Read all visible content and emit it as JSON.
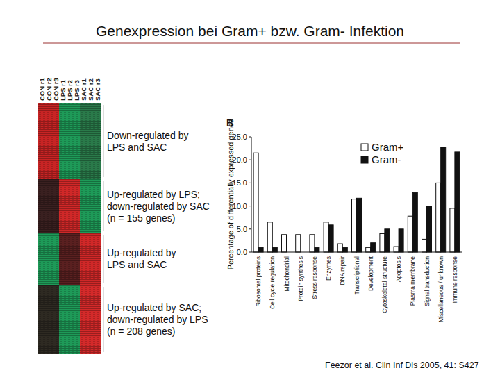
{
  "title": "Genexpression bei Gram+ bzw. Gram- Infektion",
  "citation": "Feezor et al. Clin Inf Dis 2005, 41: S427",
  "heatmap": {
    "columns": [
      "CON r1",
      "CON r2",
      "CON r3",
      "LPS r1",
      "LPS r2",
      "LPS r3",
      "SAC r1",
      "SAC r2",
      "SAC r3"
    ],
    "clusters": [
      {
        "label": [
          "Down-regulated by",
          "LPS and SAC"
        ],
        "colors": [
          "#c82424",
          "#c82424",
          "#c82424",
          "#1e9a58",
          "#1e9a58",
          "#1e9a58",
          "#2a7a4a",
          "#2a7a4a",
          "#2a7a4a"
        ]
      },
      {
        "label": [
          "Up-regulated by LPS;",
          "down-regulated by SAC",
          "(n = 155 genes)"
        ],
        "colors": [
          "#3a2020",
          "#3a2020",
          "#3a2020",
          "#d02828",
          "#d02828",
          "#d02828",
          "#1e9a58",
          "#1e9a58",
          "#1e9a58"
        ]
      },
      {
        "label": [
          "Up-regulated by",
          "LPS and SAC"
        ],
        "colors": [
          "#1e9a58",
          "#1e9a58",
          "#1e9a58",
          "#5a2020",
          "#5a2020",
          "#5a2020",
          "#d02828",
          "#d02828",
          "#d02828"
        ]
      },
      {
        "label": [
          "Up-regulated by SAC;",
          "down-regulated by LPS",
          "(n = 208 genes)"
        ],
        "colors": [
          "#2e2a22",
          "#2e2a22",
          "#2e2a22",
          "#1e9a58",
          "#1e9a58",
          "#1e9a58",
          "#d42a2a",
          "#d42a2a",
          "#d42a2a"
        ]
      }
    ]
  },
  "chart_data": {
    "type": "bar",
    "title": "B",
    "y_label": "Percentage of differentially expressed genes",
    "categories": [
      "Ribosomal proteins",
      "Cell cycle regulation",
      "Mitochondrial",
      "Protein synthesis",
      "Stress response",
      "Enzymes",
      "DNA repair",
      "Transcriptional",
      "Development",
      "Cytoskeletal structure",
      "Apoptosis",
      "Plasma membrane",
      "Signal transduction",
      "Miscellaneous / unknown",
      "Immune response"
    ],
    "series": [
      {
        "name": "Gram+",
        "color": "#ffffff",
        "values": [
          21.5,
          6.5,
          3.8,
          3.8,
          3.8,
          6.5,
          1.8,
          11.5,
          1.0,
          4.0,
          1.2,
          7.8,
          2.8,
          15.0,
          9.5
        ]
      },
      {
        "name": "Gram-",
        "color": "#111111",
        "values": [
          1.0,
          1.0,
          0,
          0,
          1.0,
          5.9,
          1.0,
          11.7,
          2.0,
          5.0,
          5.0,
          12.9,
          10.0,
          22.8,
          21.7
        ]
      }
    ],
    "ylim": [
      0,
      25
    ],
    "yticks": [
      {
        "value": 0,
        "label": "0.0"
      },
      {
        "value": 5,
        "label": "5.0"
      },
      {
        "value": 10,
        "label": "10.0"
      },
      {
        "value": 15,
        "label": "15.0"
      },
      {
        "value": 20,
        "label": "20.0"
      },
      {
        "value": 25,
        "label": "25.0"
      }
    ],
    "legend": "upper right",
    "grid": false
  }
}
